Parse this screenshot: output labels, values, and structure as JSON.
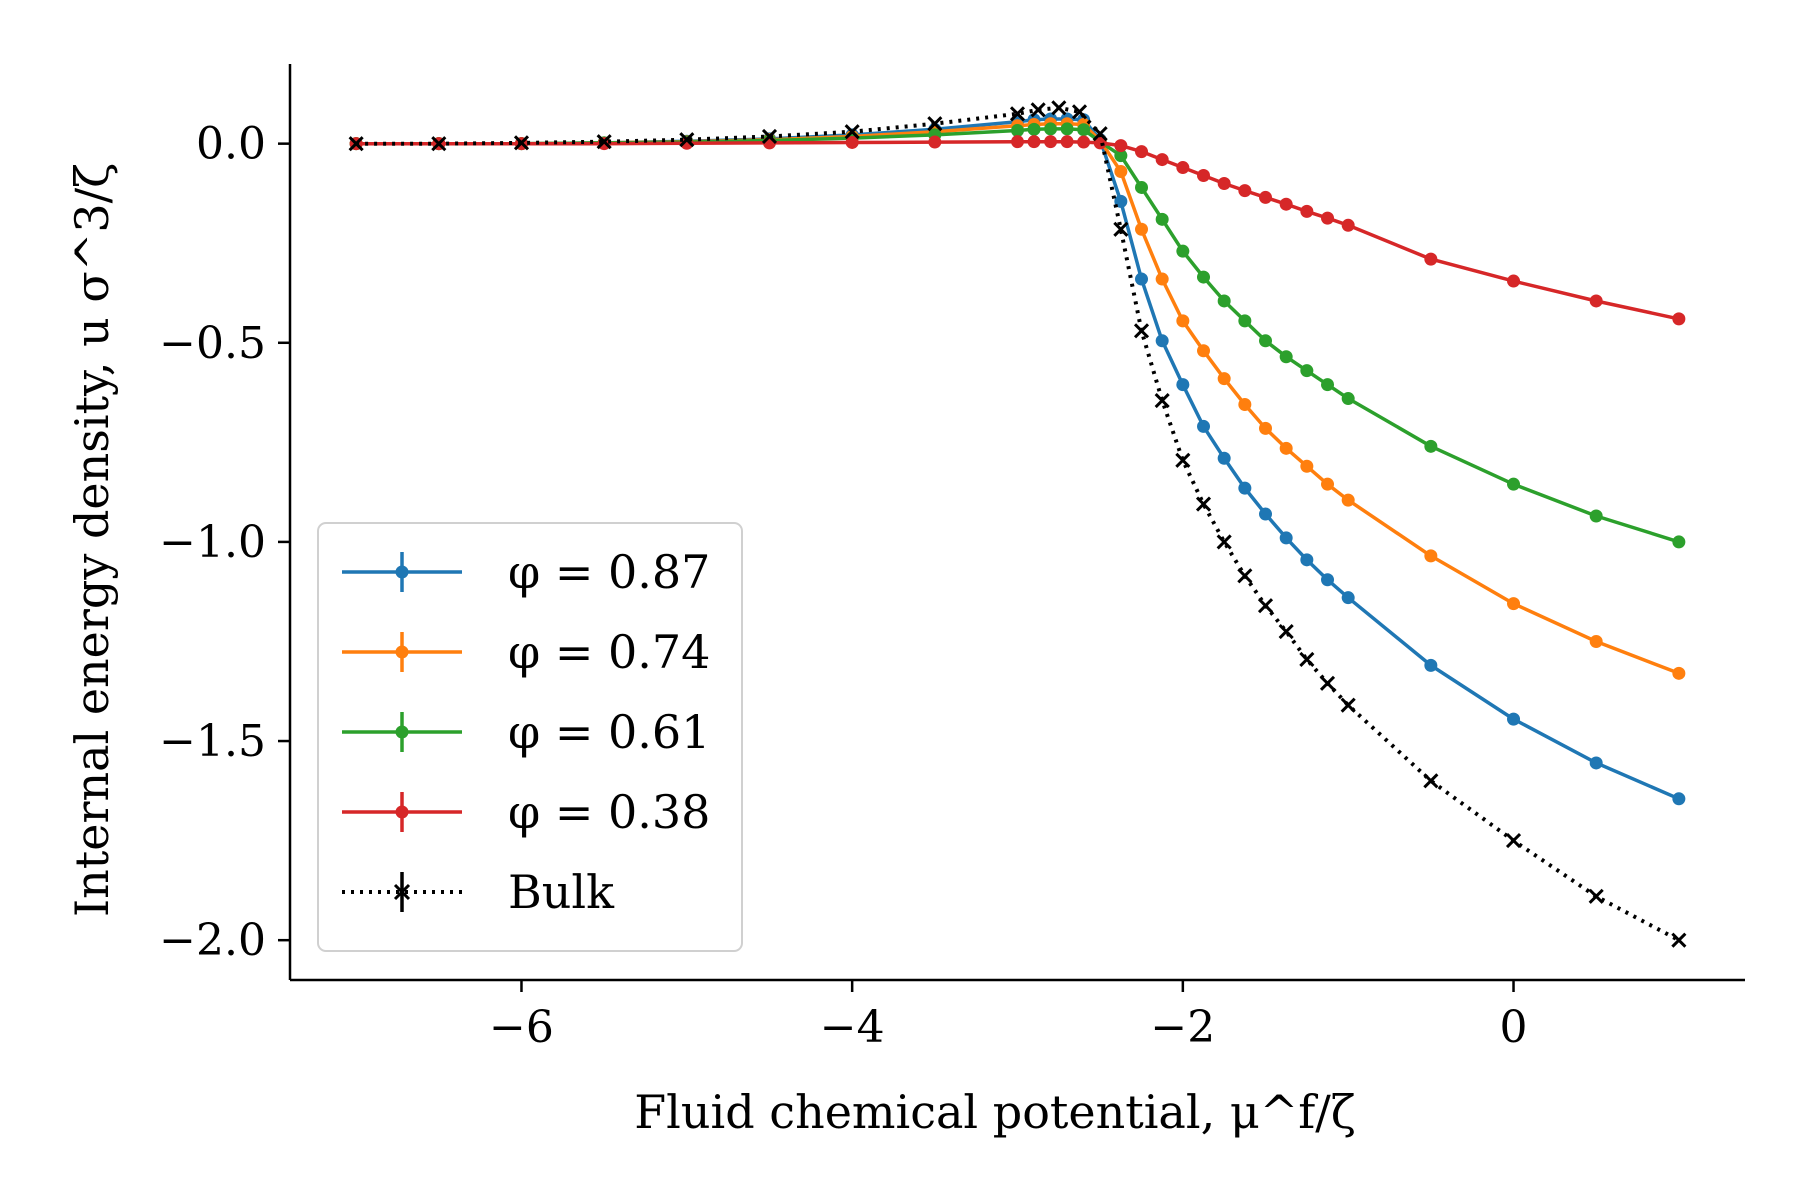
{
  "chart_data": {
    "type": "line",
    "title": "",
    "xlabel": "Fluid chemical potential, μ^f/ζ",
    "ylabel": "Internal energy density, u σ^3/ζ",
    "xlim": [
      -7.4,
      1.4
    ],
    "ylim": [
      -2.1,
      0.2
    ],
    "x_ticks": [
      -6,
      -4,
      -2,
      0
    ],
    "x_tick_labels": [
      "−6",
      "−4",
      "−2",
      "0"
    ],
    "y_ticks": [
      0.0,
      -0.5,
      -1.0,
      -1.5,
      -2.0
    ],
    "y_tick_labels": [
      "0.0",
      "−0.5",
      "−1.0",
      "−1.5",
      "−2.0"
    ],
    "grid": false,
    "legend_position": "lower-left",
    "series": [
      {
        "name": "φ = 0.87",
        "color": "#1f77b4",
        "style": "solid-dot",
        "x": [
          -7,
          -6.5,
          -6,
          -5.5,
          -5,
          -4.5,
          -4,
          -3.5,
          -3,
          -2.9,
          -2.8,
          -2.7,
          -2.6,
          -2.5,
          -2.375,
          -2.25,
          -2.125,
          -2,
          -1.875,
          -1.75,
          -1.625,
          -1.5,
          -1.375,
          -1.25,
          -1.125,
          -1,
          -0.5,
          0,
          0.5,
          1
        ],
        "y": [
          0,
          0,
          0,
          0.002,
          0.006,
          0.012,
          0.022,
          0.036,
          0.055,
          0.06,
          0.062,
          0.062,
          0.06,
          0.01,
          -0.145,
          -0.34,
          -0.495,
          -0.605,
          -0.71,
          -0.79,
          -0.865,
          -0.93,
          -0.99,
          -1.045,
          -1.095,
          -1.14,
          -1.31,
          -1.445,
          -1.555,
          -1.645
        ]
      },
      {
        "name": "φ = 0.74",
        "color": "#ff7f0e",
        "style": "solid-dot",
        "x": [
          -7,
          -6.5,
          -6,
          -5.5,
          -5,
          -4.5,
          -4,
          -3.5,
          -3,
          -2.9,
          -2.8,
          -2.7,
          -2.6,
          -2.5,
          -2.375,
          -2.25,
          -2.125,
          -2,
          -1.875,
          -1.75,
          -1.625,
          -1.5,
          -1.375,
          -1.25,
          -1.125,
          -1,
          -0.5,
          0,
          0.5,
          1
        ],
        "y": [
          0,
          0,
          0,
          0.002,
          0.005,
          0.01,
          0.018,
          0.03,
          0.045,
          0.048,
          0.05,
          0.05,
          0.048,
          0.008,
          -0.07,
          -0.215,
          -0.34,
          -0.445,
          -0.52,
          -0.59,
          -0.655,
          -0.715,
          -0.765,
          -0.81,
          -0.855,
          -0.895,
          -1.035,
          -1.155,
          -1.25,
          -1.33
        ]
      },
      {
        "name": "φ = 0.61",
        "color": "#2ca02c",
        "style": "solid-dot",
        "x": [
          -7,
          -6.5,
          -6,
          -5.5,
          -5,
          -4.5,
          -4,
          -3.5,
          -3,
          -2.9,
          -2.8,
          -2.7,
          -2.6,
          -2.5,
          -2.375,
          -2.25,
          -2.125,
          -2,
          -1.875,
          -1.75,
          -1.625,
          -1.5,
          -1.375,
          -1.25,
          -1.125,
          -1,
          -0.5,
          0,
          0.5,
          1
        ],
        "y": [
          0,
          0,
          0,
          0.002,
          0.004,
          0.008,
          0.014,
          0.022,
          0.033,
          0.036,
          0.037,
          0.037,
          0.035,
          0.005,
          -0.03,
          -0.11,
          -0.19,
          -0.27,
          -0.335,
          -0.395,
          -0.445,
          -0.495,
          -0.535,
          -0.57,
          -0.605,
          -0.64,
          -0.76,
          -0.855,
          -0.935,
          -1.0
        ]
      },
      {
        "name": "φ = 0.38",
        "color": "#d62728",
        "style": "solid-dot",
        "x": [
          -7,
          -6.5,
          -6,
          -5.5,
          -5,
          -4.5,
          -4,
          -3.5,
          -3,
          -2.9,
          -2.8,
          -2.7,
          -2.6,
          -2.5,
          -2.375,
          -2.25,
          -2.125,
          -2,
          -1.875,
          -1.75,
          -1.625,
          -1.5,
          -1.375,
          -1.25,
          -1.125,
          -1,
          -0.5,
          0,
          0.5,
          1
        ],
        "y": [
          0,
          0,
          0,
          0,
          0.001,
          0.002,
          0.003,
          0.004,
          0.005,
          0.005,
          0.005,
          0.005,
          0.004,
          0.002,
          -0.005,
          -0.02,
          -0.04,
          -0.06,
          -0.08,
          -0.1,
          -0.118,
          -0.135,
          -0.152,
          -0.17,
          -0.187,
          -0.205,
          -0.29,
          -0.345,
          -0.395,
          -0.44
        ]
      },
      {
        "name": "Bulk",
        "color": "#000000",
        "style": "dotted-x",
        "x": [
          -7,
          -6.5,
          -6,
          -5.5,
          -5,
          -4.5,
          -4,
          -3.5,
          -3,
          -2.875,
          -2.75,
          -2.625,
          -2.5,
          -2.375,
          -2.25,
          -2.125,
          -2,
          -1.875,
          -1.75,
          -1.625,
          -1.5,
          -1.375,
          -1.25,
          -1.125,
          -1,
          -0.5,
          0,
          0.5,
          1
        ],
        "y": [
          0,
          0,
          0.002,
          0.005,
          0.01,
          0.018,
          0.03,
          0.05,
          0.075,
          0.085,
          0.09,
          0.08,
          0.025,
          -0.215,
          -0.47,
          -0.645,
          -0.795,
          -0.905,
          -1.0,
          -1.085,
          -1.16,
          -1.225,
          -1.295,
          -1.355,
          -1.41,
          -1.6,
          -1.75,
          -1.89,
          -2.0
        ]
      }
    ]
  }
}
